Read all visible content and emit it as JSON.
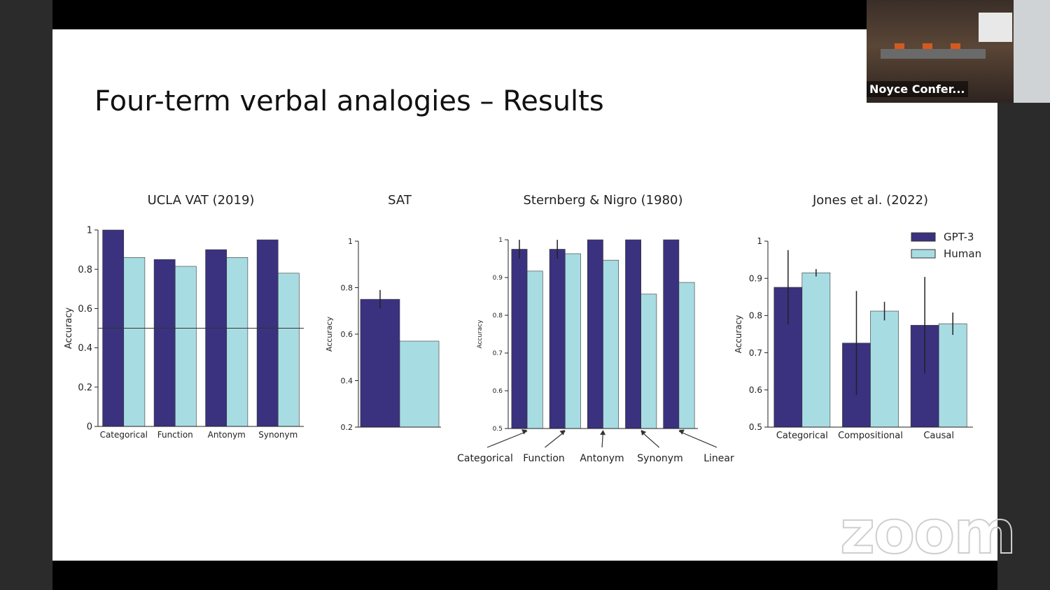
{
  "slide_title": "Four-term verbal analogies – Results",
  "video_label": "Noyce Confer...",
  "watermark": "zoom",
  "chart_data": [
    {
      "type": "bar",
      "title": "UCLA VAT (2019)",
      "ylabel": "Accuracy",
      "categories": [
        "Categorical",
        "Function",
        "Antonym",
        "Synonym"
      ],
      "series": [
        {
          "name": "GPT-3",
          "color": "#3a327f",
          "values": [
            1.0,
            0.85,
            0.9,
            0.95
          ]
        },
        {
          "name": "Human",
          "color": "#a8dce3",
          "values": [
            0.86,
            0.815,
            0.86,
            0.78
          ]
        }
      ],
      "ylim": [
        0,
        1
      ],
      "yticks": [
        0,
        0.2,
        0.4,
        0.6,
        0.8,
        1
      ],
      "reference_line": 0.5
    },
    {
      "type": "bar",
      "title": "SAT",
      "ylabel": "Accuracy",
      "categories": [
        null
      ],
      "series": [
        {
          "name": "GPT-3",
          "color": "#3a327f",
          "values": [
            0.75
          ],
          "errors": [
            0.04
          ]
        },
        {
          "name": "Human",
          "color": "#a8dce3",
          "values": [
            0.57
          ]
        }
      ],
      "ylim": [
        0.2,
        1
      ],
      "yticks": [
        0.2,
        0.4,
        0.6,
        0.8,
        1
      ]
    },
    {
      "type": "bar",
      "title": "Sternberg & Nigro (1980)",
      "ylabel": "Accuracy",
      "categories": [
        "Categorical",
        "Function",
        "Antonym",
        "Synonym",
        "Linear"
      ],
      "series": [
        {
          "name": "GPT-3",
          "color": "#3a327f",
          "values": [
            0.975,
            0.975,
            1.0,
            1.0,
            1.0
          ],
          "errors": [
            0.025,
            0.025,
            0,
            0,
            0
          ]
        },
        {
          "name": "Human",
          "color": "#a8dce3",
          "values": [
            0.917,
            0.963,
            0.946,
            0.856,
            0.887
          ]
        }
      ],
      "ylim": [
        0.5,
        1
      ],
      "yticks": [
        0.5,
        0.6,
        0.7,
        0.8,
        0.9,
        1
      ]
    },
    {
      "type": "bar",
      "title": "Jones et al. (2022)",
      "ylabel": "Accuracy",
      "categories": [
        "Categorical",
        "Compositional",
        "Causal"
      ],
      "series": [
        {
          "name": "GPT-3",
          "color": "#3a327f",
          "values": [
            0.876,
            0.726,
            0.774
          ],
          "errors": [
            0.1,
            0.14,
            0.13
          ]
        },
        {
          "name": "Human",
          "color": "#a8dce3",
          "values": [
            0.915,
            0.812,
            0.778
          ],
          "errors": [
            0.01,
            0.025,
            0.03
          ]
        }
      ],
      "ylim": [
        0.5,
        1
      ],
      "yticks": [
        0.5,
        0.6,
        0.7,
        0.8,
        0.9,
        1
      ],
      "legend": "upper right"
    }
  ]
}
